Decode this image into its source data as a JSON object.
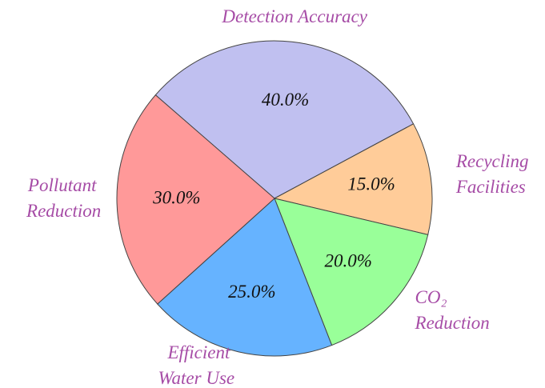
{
  "chart_data": {
    "type": "pie",
    "categories": [
      "Detection Accuracy",
      "Recycling Facilities",
      "CO₂ Reduction",
      "Efficient Water Use",
      "Pollutant Reduction"
    ],
    "values": [
      40,
      15,
      20,
      25,
      30
    ],
    "value_labels": [
      "40.0%",
      "15.0%",
      "20.0%",
      "25.0%",
      "30.0%"
    ],
    "colors": [
      "#c0c0f0",
      "#ffcc99",
      "#99ff99",
      "#66b3ff",
      "#ff9999"
    ]
  }
}
